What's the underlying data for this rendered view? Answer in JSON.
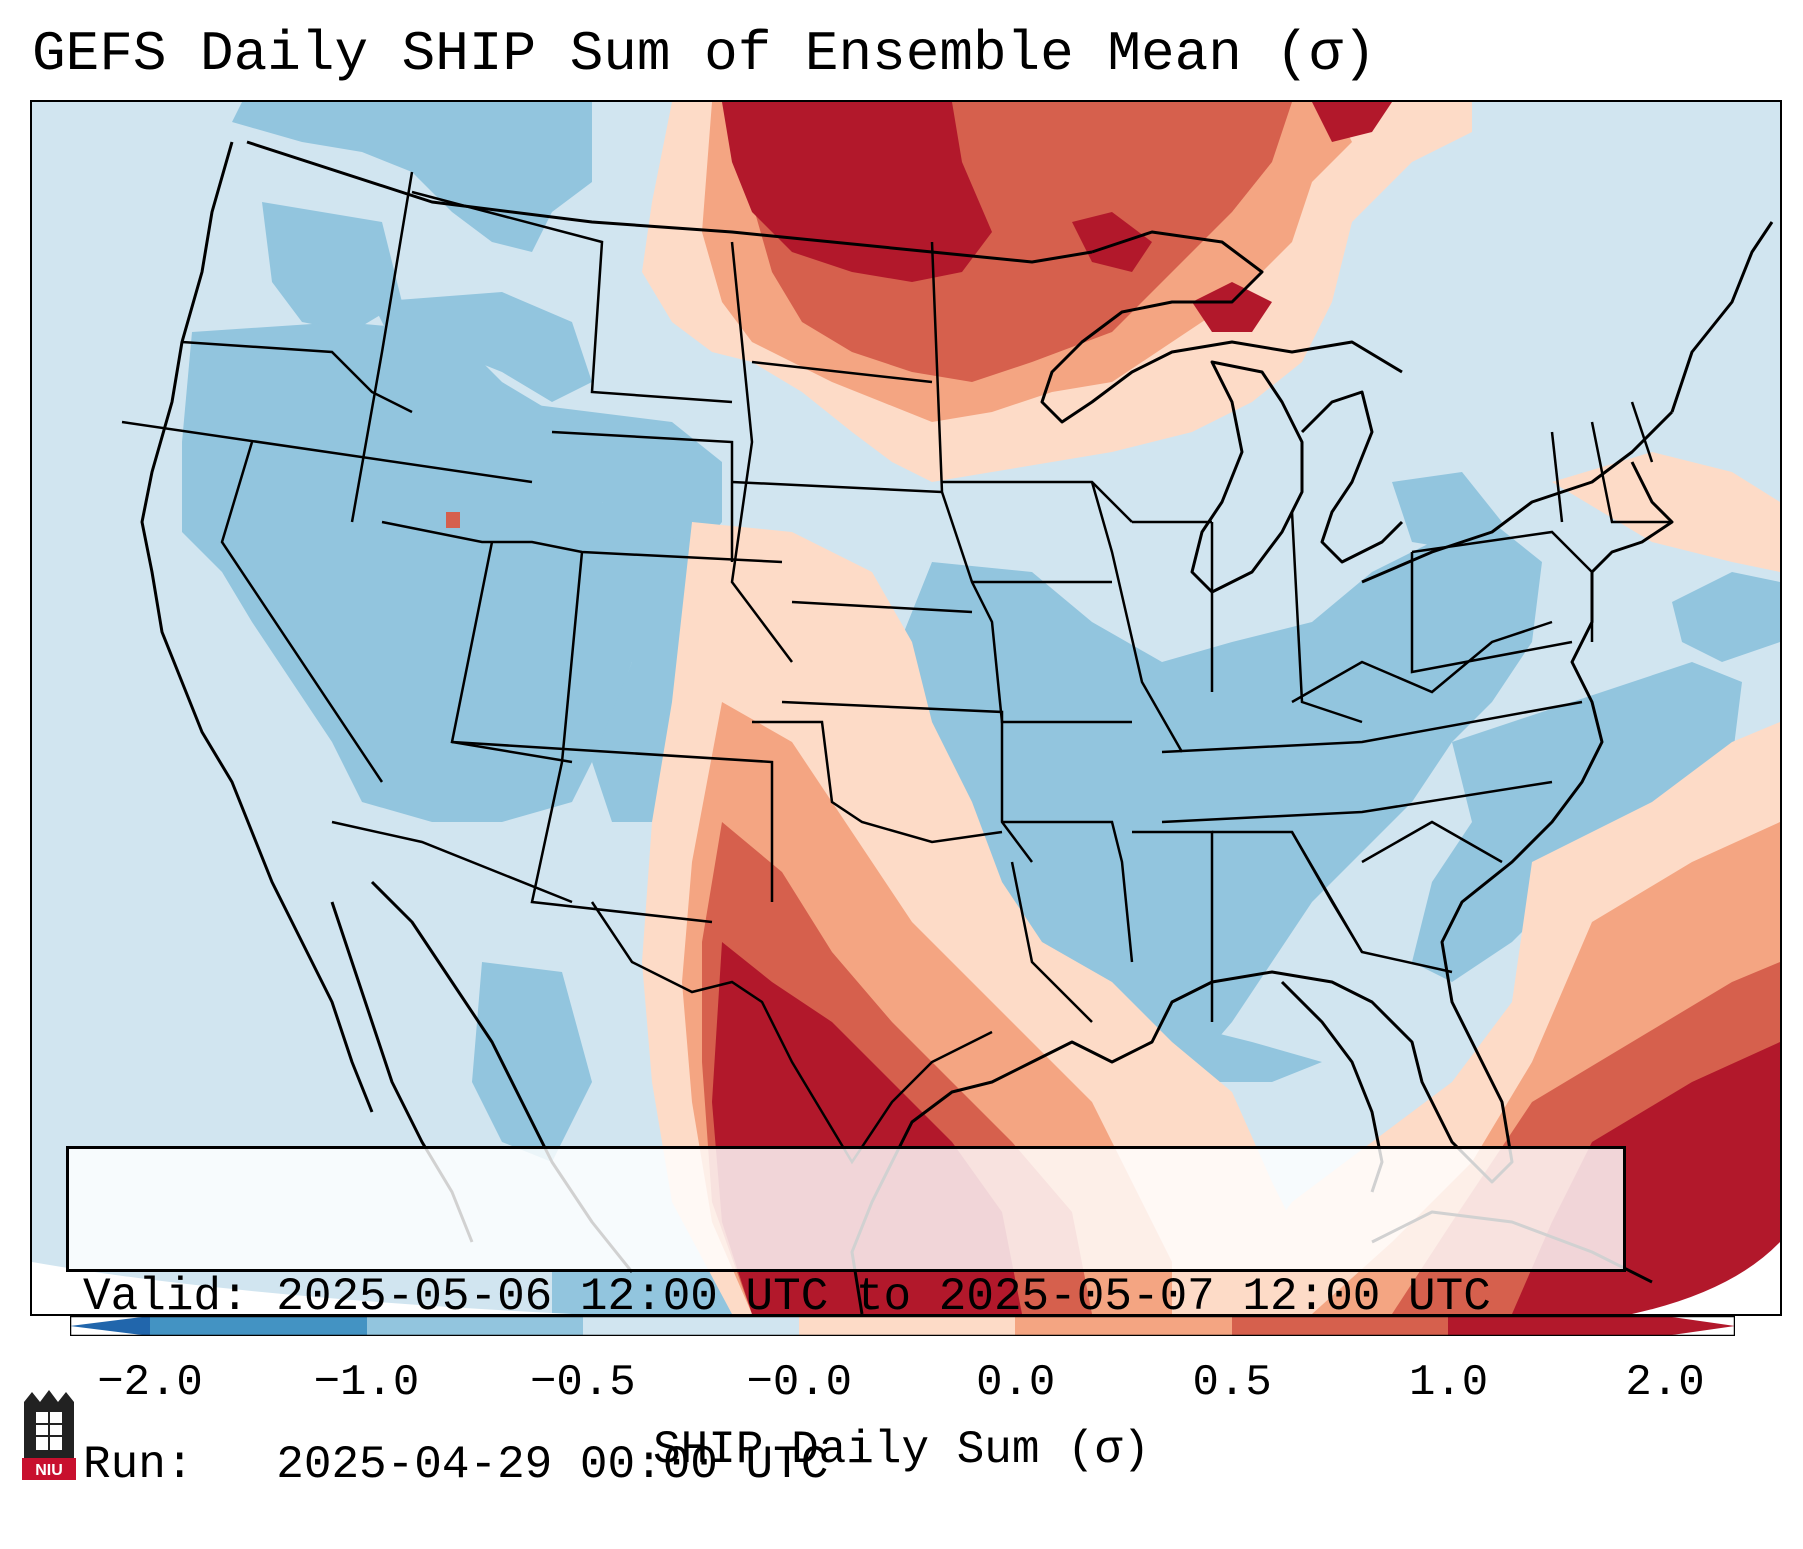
{
  "title": "GEFS Daily SHIP Sum of Ensemble Mean (σ)",
  "info": {
    "valid_line": "Valid: 2025-05-06 12:00 UTC to 2025-05-07 12:00 UTC",
    "run_line": "Run:   2025-04-29 00:00 UTC"
  },
  "colorbar": {
    "label": "SHIP Daily Sum (σ)",
    "ticks": [
      "−2.0",
      "−1.0",
      "−0.5",
      "−0.0",
      "0.0",
      "0.5",
      "1.0",
      "2.0"
    ],
    "colors": [
      "#4393c3",
      "#92c5de",
      "#d1e5f0",
      "#fddbc7",
      "#f4a582",
      "#d6604d",
      "#b2182b"
    ],
    "extend_low_color": "#2166ac",
    "extend_high_color": "#b2182b"
  },
  "logo": {
    "text": "NIU",
    "color": "#c8102e"
  },
  "legend_colors": {
    "strong_negative": "#4393c3",
    "negative": "#92c5de",
    "weak_negative": "#d1e5f0",
    "weak_positive": "#fddbc7",
    "positive": "#f4a582",
    "strong_positive": "#d6604d",
    "very_strong_positive": "#b2182b"
  }
}
